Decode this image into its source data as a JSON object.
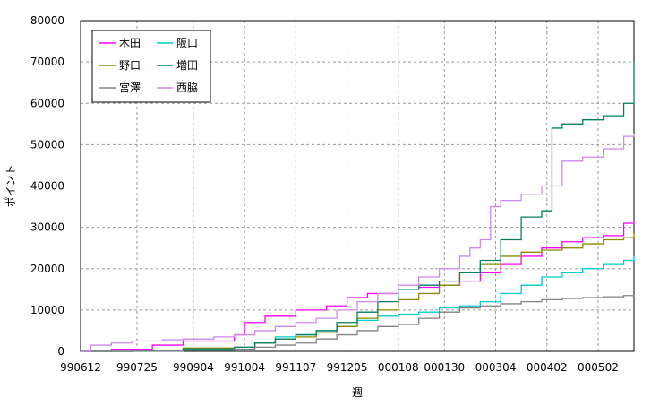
{
  "chart_data": {
    "type": "line",
    "xlabel": "週",
    "ylabel": "ポイント",
    "ylim": [
      0,
      80000
    ],
    "yticks": [
      0,
      10000,
      20000,
      30000,
      40000,
      50000,
      60000,
      70000,
      80000
    ],
    "ytick_labels": [
      "0",
      "10000",
      "20000",
      "30000",
      "40000",
      "50000",
      "60000",
      "70000",
      "80000"
    ],
    "xlim": [
      0,
      54
    ],
    "xticks": [
      0,
      5,
      10,
      15,
      20,
      25,
      30,
      35,
      40,
      45
    ],
    "xtick_labels": [
      "990612",
      "990725",
      "990904",
      "991004",
      "991107",
      "991205",
      "000108",
      "000130",
      "000304",
      "000402",
      "000502"
    ],
    "xtick_positions": [
      0,
      5.5,
      11,
      16,
      21,
      26,
      31,
      35.5,
      40.5,
      45.5,
      50.5
    ],
    "grid": true,
    "legend_placement": "top-left",
    "series": [
      {
        "name": "木田",
        "color": "#ff00ff",
        "x": [
          0,
          3,
          7,
          10,
          15,
          16,
          18,
          21,
          24,
          26,
          28,
          31,
          33,
          35,
          37,
          39,
          41,
          43,
          45,
          47,
          49,
          51,
          53,
          54
        ],
        "y": [
          0,
          500,
          1500,
          2500,
          4000,
          7000,
          8500,
          10000,
          11000,
          13000,
          14000,
          15000,
          15500,
          16000,
          17000,
          19000,
          21000,
          23000,
          25000,
          26500,
          27500,
          28000,
          31000,
          31500
        ]
      },
      {
        "name": "阪口",
        "color": "#00cccc",
        "x": [
          0,
          5,
          10,
          15,
          17,
          19,
          21,
          23,
          25,
          27,
          29,
          31,
          33,
          35,
          37,
          39,
          41,
          43,
          45,
          47,
          49,
          51,
          53,
          54
        ],
        "y": [
          0,
          100,
          300,
          500,
          2000,
          3500,
          4000,
          5000,
          6000,
          7500,
          8500,
          9000,
          9500,
          10500,
          11000,
          12000,
          14000,
          16000,
          18000,
          19000,
          20000,
          21000,
          22000,
          23000
        ]
      },
      {
        "name": "野口",
        "color": "#8b8b00",
        "x": [
          0,
          5,
          10,
          15,
          17,
          19,
          21,
          23,
          25,
          27,
          29,
          31,
          33,
          35,
          37,
          39,
          41,
          43,
          45,
          47,
          49,
          51,
          53,
          54
        ],
        "y": [
          0,
          300,
          800,
          1000,
          2000,
          3000,
          3500,
          4500,
          6000,
          8000,
          10000,
          12500,
          14000,
          16000,
          19000,
          21000,
          23000,
          24000,
          24500,
          25000,
          26000,
          27000,
          27500,
          28500
        ]
      },
      {
        "name": "増田",
        "color": "#008060",
        "x": [
          0,
          5,
          10,
          15,
          17,
          19,
          21,
          23,
          25,
          27,
          29,
          31,
          33,
          35,
          37,
          39,
          41,
          43,
          45,
          46,
          47,
          49,
          51,
          53,
          54
        ],
        "y": [
          0,
          200,
          600,
          1000,
          2000,
          3000,
          4000,
          5000,
          7000,
          9500,
          12000,
          15000,
          16000,
          17000,
          19000,
          22000,
          27000,
          32500,
          34000,
          54000,
          55000,
          56000,
          57000,
          60000,
          70000
        ]
      },
      {
        "name": "宮澤",
        "color": "#808080",
        "x": [
          0,
          5,
          10,
          15,
          17,
          19,
          21,
          23,
          25,
          27,
          29,
          31,
          33,
          35,
          37,
          39,
          41,
          43,
          45,
          47,
          49,
          51,
          53,
          54
        ],
        "y": [
          0,
          100,
          300,
          500,
          1000,
          1500,
          2000,
          3000,
          4000,
          5000,
          6000,
          6500,
          8000,
          9500,
          10500,
          11000,
          11500,
          12000,
          12500,
          12800,
          13000,
          13200,
          13500,
          13600
        ]
      },
      {
        "name": "西脇",
        "color": "#cc88ee",
        "x": [
          0,
          1,
          3,
          5,
          8,
          10,
          13,
          15,
          17,
          19,
          21,
          23,
          25,
          27,
          29,
          31,
          33,
          35,
          37,
          38,
          39,
          40,
          41,
          43,
          45,
          47,
          49,
          51,
          53,
          54
        ],
        "y": [
          0,
          1500,
          2000,
          2500,
          2800,
          3000,
          3500,
          4000,
          5000,
          6000,
          7000,
          8000,
          10000,
          12000,
          14000,
          16000,
          18000,
          20000,
          23000,
          25000,
          27000,
          35000,
          36500,
          38000,
          40000,
          46000,
          47000,
          49000,
          52000,
          52500
        ]
      }
    ]
  }
}
